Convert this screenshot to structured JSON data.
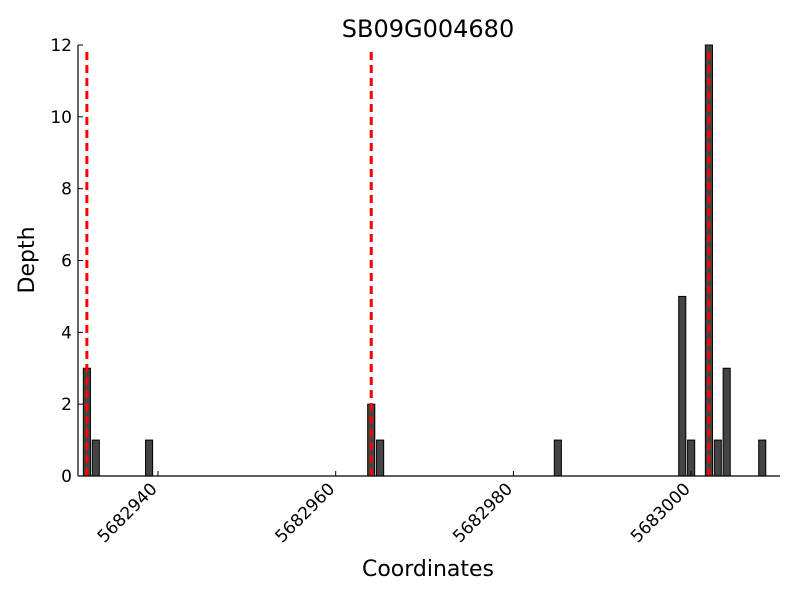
{
  "chart_data": {
    "type": "bar",
    "title": "SB09G004680",
    "xlabel": "Coordinates",
    "ylabel": "Depth",
    "xlim": [
      5682931,
      5683010
    ],
    "ylim": [
      0,
      12
    ],
    "xticks": [
      5682940,
      5682960,
      5682980,
      5683000
    ],
    "yticks": [
      0,
      2,
      4,
      6,
      8,
      10,
      12
    ],
    "bar_color": "#444444",
    "x": [
      5682932,
      5682933,
      5682939,
      5682964,
      5682965,
      5682985,
      5682999,
      5683000,
      5683002,
      5683003,
      5683004,
      5683008
    ],
    "values": [
      3,
      1,
      1,
      2,
      1,
      1,
      5,
      1,
      12,
      1,
      3,
      1
    ],
    "vlines": [
      5682932,
      5682964,
      5683002
    ],
    "vline_color": "#ff0000",
    "grid": false
  }
}
